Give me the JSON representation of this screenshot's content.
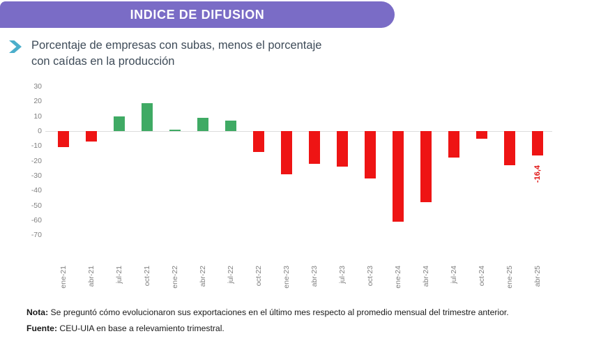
{
  "header": {
    "title": "INDICE DE DIFUSION"
  },
  "subtitle": {
    "line1": "Porcentaje de empresas con subas, menos el porcentaje",
    "line2": "con caídas en la producción"
  },
  "notes": {
    "nota_label": "Nota:",
    "nota_text": "Se preguntó cómo evolucionaron sus exportaciones en el último mes respecto al promedio mensual del trimestre anterior.",
    "fuente_label": "Fuente:",
    "fuente_text": "CEU-UIA en base a relevamiento trimestral."
  },
  "colors": {
    "banner": "#7A6CC6",
    "chevron": "#4BAECB",
    "positive_bar": "#3FAA64",
    "negative_bar": "#EE1414",
    "value_label": "#E01010",
    "axis_text": "#7F7F7F",
    "zero_line": "#DCDCDC",
    "subtitle_text": "#3E4B58"
  },
  "chart_data": {
    "type": "bar",
    "title": "",
    "xlabel": "",
    "ylabel": "",
    "categories": [
      "ene-21",
      "abr-21",
      "jul-21",
      "oct-21",
      "ene-22",
      "abr-22",
      "jul-22",
      "oct-22",
      "ene-23",
      "abr-23",
      "jul-23",
      "oct-23",
      "ene-24",
      "abr-24",
      "jul-24",
      "oct-24",
      "ene-25",
      "abr-25"
    ],
    "values": [
      -11,
      -7,
      10,
      19,
      1,
      9,
      7,
      -14,
      -29,
      -22,
      -24,
      -32,
      -61,
      -48,
      -18,
      -5,
      -23,
      -16.4
    ],
    "yticks": [
      30,
      20,
      10,
      0,
      -10,
      -20,
      -30,
      -40,
      -50,
      -60,
      -70
    ],
    "ylim": [
      -70,
      30
    ],
    "grid": "zero-line-only",
    "legend": "none",
    "bar_color_rule": "green if positive, red if negative",
    "data_labels": [
      {
        "category": "abr-25",
        "text": "-16,4"
      }
    ]
  }
}
